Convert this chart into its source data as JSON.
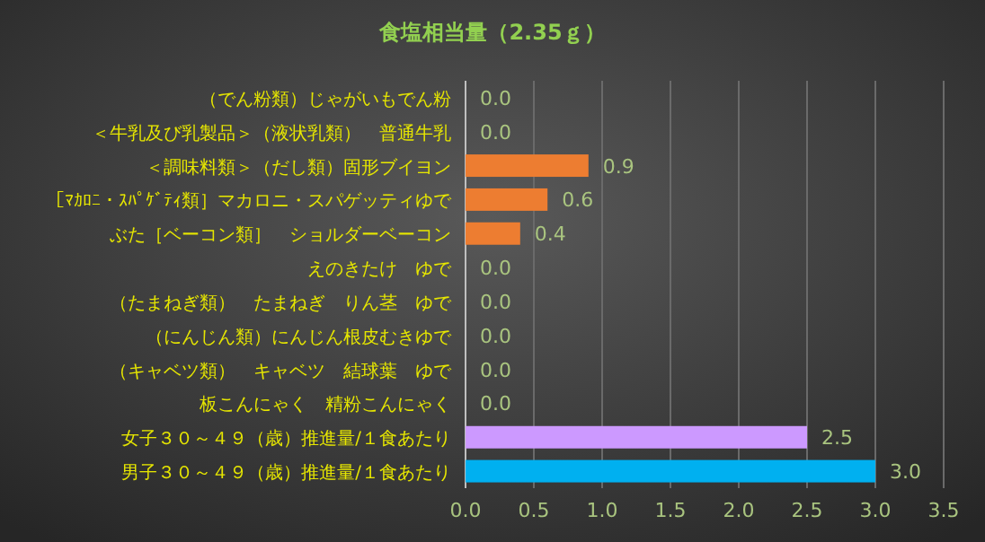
{
  "chart_data": {
    "type": "bar",
    "orientation": "horizontal",
    "title": "食塩相当量（2.35ｇ）",
    "categories": [
      "（でん粉類）じゃがいもでん粉",
      "＜牛乳及び乳製品＞（液状乳類）　普通牛乳",
      "＜調味料類＞（だし類）固形ブイヨン",
      "［ﾏｶﾛﾆ・ｽﾊﾟｹﾞﾃｨ類］マカロニ・スパゲッティゆで",
      "ぶた［ベーコン類］　ショルダーベーコン",
      "えのきたけ　ゆで",
      "（たまねぎ類）　たまねぎ　りん茎　ゆで",
      "（にんじん類）にんじん根皮むきゆで",
      "（キャベツ類）　キャベツ　結球葉　ゆで",
      "板こんにゃく　精粉こんにゃく",
      "女子３０～４９（歳）推進量/１食あたり",
      "男子３０～４９（歳）推進量/１食あたり"
    ],
    "values": [
      0,
      0,
      0.9,
      0.6,
      0.4,
      0,
      0,
      0,
      0,
      0,
      2.5,
      3.0
    ],
    "colors": [
      "#ed7d31",
      "#ed7d31",
      "#ed7d31",
      "#ed7d31",
      "#ed7d31",
      "#ed7d31",
      "#ed7d31",
      "#ed7d31",
      "#ed7d31",
      "#ed7d31",
      "#cc99ff",
      "#00b0f0"
    ],
    "value_labels": [
      "0.0",
      "0.0",
      "0.9",
      "0.6",
      "0.4",
      "0.0",
      "0.0",
      "0.0",
      "0.0",
      "0.0",
      "2.5",
      "3.0"
    ],
    "xlim": [
      0,
      3.5
    ],
    "xticks": [
      {
        "value": 0,
        "label": "0.0"
      },
      {
        "value": 0.5,
        "label": "0.5"
      },
      {
        "value": 1,
        "label": "1.0"
      },
      {
        "value": 1.5,
        "label": "1.5"
      },
      {
        "value": 2,
        "label": "2.0"
      },
      {
        "value": 2.5,
        "label": "2.5"
      },
      {
        "value": 3,
        "label": "3.0"
      },
      {
        "value": 3.5,
        "label": "3.5"
      }
    ],
    "grid": "x"
  }
}
